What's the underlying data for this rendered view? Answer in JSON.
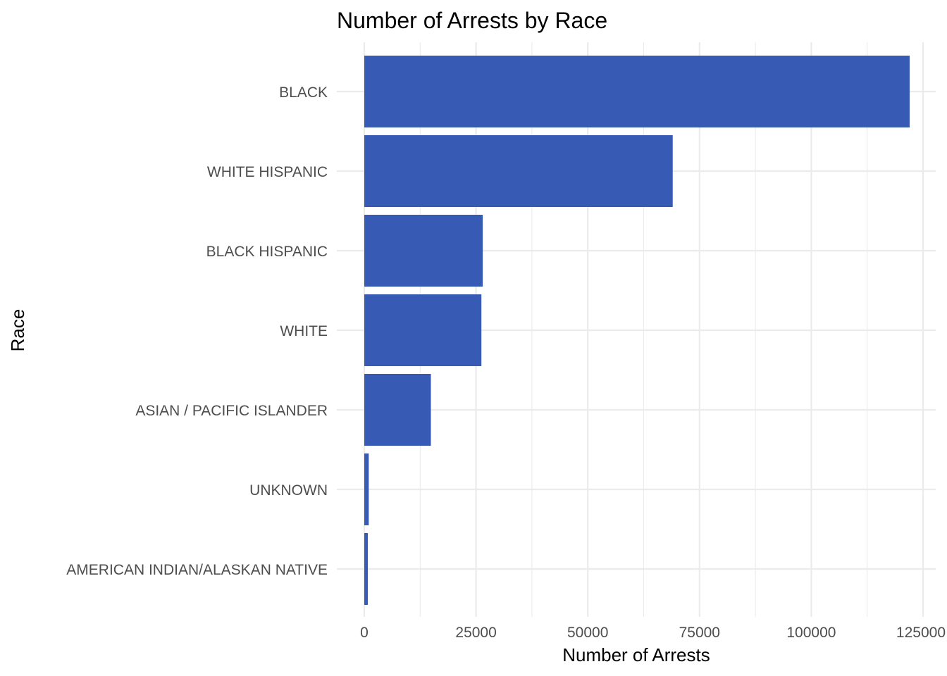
{
  "chart_data": {
    "type": "bar",
    "orientation": "horizontal",
    "title": "Number of Arrests by Race",
    "xlabel": "Number of Arrests",
    "ylabel": "Race",
    "categories": [
      "BLACK",
      "WHITE HISPANIC",
      "BLACK HISPANIC",
      "WHITE",
      "ASIAN / PACIFIC ISLANDER",
      "UNKNOWN",
      "AMERICAN INDIAN/ALASKAN NATIVE"
    ],
    "values": [
      122000,
      69000,
      26500,
      26200,
      14900,
      1000,
      800
    ],
    "xlim": [
      0,
      127500
    ],
    "x_ticks": [
      0,
      25000,
      50000,
      75000,
      100000,
      125000
    ],
    "x_tick_labels": [
      "0",
      "25000",
      "50000",
      "75000",
      "100000",
      "125000"
    ],
    "grid": true,
    "bar_color": "#375ab5",
    "grid_color": "#ebebeb"
  }
}
